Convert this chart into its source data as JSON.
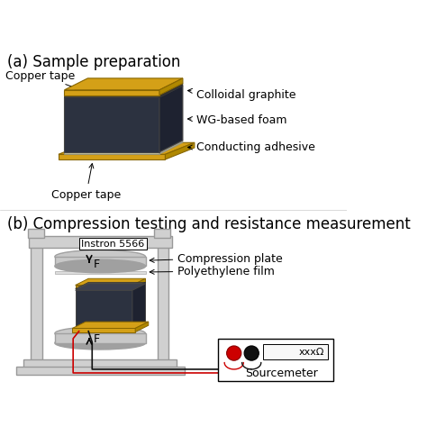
{
  "title_a": "(a) Sample preparation",
  "title_b": "(b) Compression testing and resistance measurement",
  "label_copper_top": "Copper tape",
  "label_copper_bot": "Copper tape",
  "label_colloidal": "Colloidal graphite",
  "label_foam": "WG-based foam",
  "label_adhesive": "Conducting adhesive",
  "label_instron": "Instron 5566",
  "label_compression": "Compression plate",
  "label_poly": "Polyethylene film",
  "label_sourcemeter": "Sourcemeter",
  "label_xxxohm": "xxxΩ",
  "label_F": "F",
  "color_gold": "#D4A017",
  "color_dark": "#2C3240",
  "color_gray_light": "#C8C8C8",
  "color_gray_mid": "#A0A0A0",
  "color_white": "#FFFFFF",
  "color_black": "#000000",
  "color_red": "#CC0000",
  "color_structure": "#D0D0D0",
  "color_border": "#888888"
}
